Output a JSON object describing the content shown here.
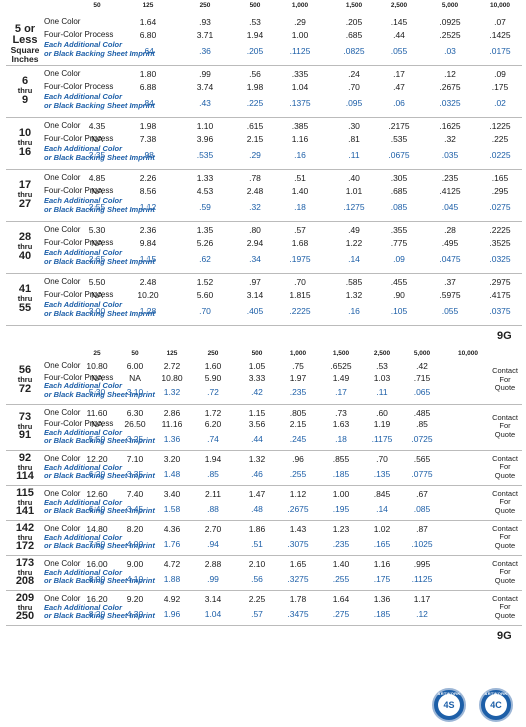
{
  "top": {
    "headers": [
      "50",
      "125",
      "250",
      "500",
      "1,000",
      "1,500",
      "2,500",
      "5,000",
      "10,000"
    ],
    "groups": [
      {
        "range_top": "5 or",
        "range_mid": "Less",
        "range_bot": "Square Inches",
        "rows": [
          {
            "label": "One Color",
            "values": [
              "",
              "1.64",
              ".93",
              ".53",
              ".29",
              ".205",
              ".145",
              ".0925",
              ".07"
            ]
          },
          {
            "label": "Four-Color Process",
            "values": [
              "",
              "6.80",
              "3.71",
              "1.94",
              "1.00",
              ".685",
              ".44",
              ".2525",
              ".1425"
            ]
          },
          {
            "label": "Each Additional Color\nor Black Backing Sheet Imprint",
            "values": [
              "",
              ".64",
              ".36",
              ".205",
              ".1125",
              ".0825",
              ".055",
              ".03",
              ".0175"
            ]
          }
        ]
      },
      {
        "range_top": "6",
        "range_mid": "thru",
        "range_bot": "9",
        "rows": [
          {
            "label": "One Color",
            "values": [
              "",
              "1.80",
              ".99",
              ".56",
              ".335",
              ".24",
              ".17",
              ".12",
              ".09"
            ]
          },
          {
            "label": "Four-Color Process",
            "values": [
              "",
              "6.88",
              "3.74",
              "1.98",
              "1.04",
              ".70",
              ".47",
              ".2675",
              ".175"
            ]
          },
          {
            "label": "Each Additional Color\nor Black Backing Sheet Imprint",
            "values": [
              "",
              ".84",
              ".43",
              ".225",
              ".1375",
              ".095",
              ".06",
              ".0325",
              ".02"
            ]
          }
        ]
      },
      {
        "range_top": "10",
        "range_mid": "thru",
        "range_bot": "16",
        "rows": [
          {
            "label": "One Color",
            "values": [
              "4.35",
              "1.98",
              "1.10",
              ".615",
              ".385",
              ".30",
              ".2175",
              ".1625",
              ".1225"
            ]
          },
          {
            "label": "Four-Color Process",
            "values": [
              "NA",
              "7.38",
              "3.96",
              "2.15",
              "1.16",
              ".81",
              ".535",
              ".32",
              ".225"
            ]
          },
          {
            "label": "Each Additional Color\nor Black Backing Sheet Imprint",
            "values": [
              "2.35",
              ".98",
              ".535",
              ".29",
              ".16",
              ".11",
              ".0675",
              ".035",
              ".0225"
            ]
          }
        ]
      },
      {
        "range_top": "17",
        "range_mid": "thru",
        "range_bot": "27",
        "rows": [
          {
            "label": "One Color",
            "values": [
              "4.85",
              "2.26",
              "1.33",
              ".78",
              ".51",
              ".40",
              ".305",
              ".235",
              ".165"
            ]
          },
          {
            "label": "Four-Color Process",
            "values": [
              "NA",
              "8.56",
              "4.53",
              "2.48",
              "1.40",
              "1.01",
              ".685",
              ".4125",
              ".295"
            ]
          },
          {
            "label": "Each Additional Color\nor Black Backing Sheet Imprint",
            "values": [
              "2.55",
              "1.12",
              ".59",
              ".32",
              ".18",
              ".1275",
              ".085",
              ".045",
              ".0275"
            ]
          }
        ]
      },
      {
        "range_top": "28",
        "range_mid": "thru",
        "range_bot": "40",
        "rows": [
          {
            "label": "One Color",
            "values": [
              "5.30",
              "2.36",
              "1.35",
              ".80",
              ".57",
              ".49",
              ".355",
              ".28",
              ".2225"
            ]
          },
          {
            "label": "Four-Color Process",
            "values": [
              "NA",
              "9.84",
              "5.26",
              "2.94",
              "1.68",
              "1.22",
              ".775",
              ".495",
              ".3525"
            ]
          },
          {
            "label": "Each Additional Color\nor Black Backing Sheet Imprint",
            "values": [
              "2.65",
              "1.15",
              ".62",
              ".34",
              ".1975",
              ".14",
              ".09",
              ".0475",
              ".0325"
            ]
          }
        ]
      },
      {
        "range_top": "41",
        "range_mid": "thru",
        "range_bot": "55",
        "rows": [
          {
            "label": "One Color",
            "values": [
              "5.50",
              "2.48",
              "1.52",
              ".97",
              ".70",
              ".585",
              ".455",
              ".37",
              ".2975"
            ]
          },
          {
            "label": "Four-Color Process",
            "values": [
              "NA",
              "10.20",
              "5.60",
              "3.14",
              "1.815",
              "1.32",
              ".90",
              ".5975",
              ".4175"
            ]
          },
          {
            "label": "Each Additional Color\nor Black Backing Sheet Imprint",
            "values": [
              "3.00",
              "1.28",
              ".70",
              ".405",
              ".2225",
              ".16",
              ".105",
              ".055",
              ".0375"
            ]
          }
        ]
      }
    ],
    "tag": "9G"
  },
  "bottom": {
    "headers": [
      "25",
      "50",
      "125",
      "250",
      "500",
      "1,000",
      "1,500",
      "2,500",
      "5,000",
      "10,000"
    ],
    "groups": [
      {
        "range_top": "56",
        "range_mid": "thru",
        "range_bot": "72",
        "rows": [
          {
            "label": "One Color",
            "values": [
              "10.80",
              "6.00",
              "2.72",
              "1.60",
              "1.05",
              ".75",
              ".6525",
              ".53",
              ".42"
            ]
          },
          {
            "label": "Four-Color Process",
            "values": [
              "NA",
              "NA",
              "10.80",
              "5.90",
              "3.33",
              "1.97",
              "1.49",
              "1.03",
              ".715"
            ]
          },
          {
            "label": "Each Additional Color\nor Black Backing Sheet Imprint",
            "values": [
              "5.30",
              "3.10",
              "1.32",
              ".72",
              ".42",
              ".235",
              ".17",
              ".11",
              ".065"
            ]
          }
        ]
      },
      {
        "range_top": "73",
        "range_mid": "thru",
        "range_bot": "91",
        "rows": [
          {
            "label": "One Color",
            "values": [
              "11.60",
              "6.30",
              "2.86",
              "1.72",
              "1.15",
              ".805",
              ".73",
              ".60",
              ".485"
            ]
          },
          {
            "label": "Four-Color Process",
            "values": [
              "NA",
              "26.50",
              "11.16",
              "6.20",
              "3.56",
              "2.15",
              "1.63",
              "1.19",
              ".85"
            ]
          },
          {
            "label": "Each Additional Color\nor Black Backing Sheet Imprint",
            "values": [
              "5.50",
              "3.25",
              "1.36",
              ".74",
              ".44",
              ".245",
              ".18",
              ".1175",
              ".0725"
            ]
          }
        ]
      },
      {
        "range_top": "92",
        "range_mid": "thru",
        "range_bot": "114",
        "rows": [
          {
            "label": "One Color",
            "values": [
              "12.20",
              "7.10",
              "3.20",
              "1.94",
              "1.32",
              ".96",
              ".855",
              ".70",
              ".565"
            ]
          },
          {
            "label": "Each Additional Color\nor Black Backing Sheet Imprint",
            "values": [
              "6.20",
              "3.35",
              "1.48",
              ".85",
              ".46",
              ".255",
              ".185",
              ".135",
              ".0775"
            ]
          }
        ]
      },
      {
        "range_top": "115",
        "range_mid": "thru",
        "range_bot": "141",
        "rows": [
          {
            "label": "One Color",
            "values": [
              "12.60",
              "7.40",
              "3.40",
              "2.11",
              "1.47",
              "1.12",
              "1.00",
              ".845",
              ".67"
            ]
          },
          {
            "label": "Each Additional Color\nor Black Backing Sheet Imprint",
            "values": [
              "6.40",
              "3.45",
              "1.58",
              ".88",
              ".48",
              ".2675",
              ".195",
              ".14",
              ".085"
            ]
          }
        ]
      },
      {
        "range_top": "142",
        "range_mid": "thru",
        "range_bot": "172",
        "rows": [
          {
            "label": "One Color",
            "values": [
              "14.80",
              "8.20",
              "4.36",
              "2.70",
              "1.86",
              "1.43",
              "1.23",
              "1.02",
              ".87"
            ]
          },
          {
            "label": "Each Additional Color\nor Black Backing Sheet Imprint",
            "values": [
              "7.60",
              "4.00",
              "1.76",
              ".94",
              ".51",
              ".3075",
              ".235",
              ".165",
              ".1025"
            ]
          }
        ]
      },
      {
        "range_top": "173",
        "range_mid": "thru",
        "range_bot": "208",
        "rows": [
          {
            "label": "One Color",
            "values": [
              "16.00",
              "9.00",
              "4.72",
              "2.88",
              "2.10",
              "1.65",
              "1.40",
              "1.16",
              ".995"
            ]
          },
          {
            "label": "Each Additional Color\nor Black Backing Sheet Imprint",
            "values": [
              "8.00",
              "4.10",
              "1.88",
              ".99",
              ".56",
              ".3275",
              ".255",
              ".175",
              ".1125"
            ]
          }
        ]
      },
      {
        "range_top": "209",
        "range_mid": "thru",
        "range_bot": "250",
        "rows": [
          {
            "label": "One Color",
            "values": [
              "16.20",
              "9.20",
              "4.92",
              "3.14",
              "2.25",
              "1.78",
              "1.64",
              "1.36",
              "1.17"
            ]
          },
          {
            "label": "Each Additional Color\nor Black Backing Sheet Imprint",
            "values": [
              "8.20",
              "4.30",
              "1.96",
              "1.04",
              ".57",
              ".3475",
              ".275",
              ".185",
              ".12"
            ]
          }
        ]
      }
    ],
    "contact_lines": [
      "Contact",
      "For",
      "Quote"
    ],
    "tag": "9G"
  },
  "badges": [
    {
      "arc": "ARTWORK",
      "text": "4S"
    },
    {
      "arc": "ARTWORK",
      "text": "4C"
    }
  ],
  "colors": {
    "blue": "#1d5fa8",
    "text": "#1a1a1a",
    "rule": "#bbbbbb"
  }
}
